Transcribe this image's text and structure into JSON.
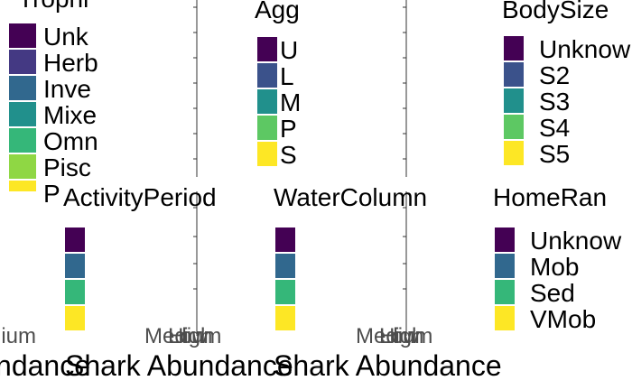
{
  "chart_data": [
    {
      "type": "bar",
      "title": "Trophi",
      "legend": [
        "Unk",
        "Herb",
        "Inve",
        "Mixe",
        "Omn",
        "Pisc",
        "P"
      ],
      "colors": [
        "#440154",
        "#443983",
        "#31688E",
        "#21908C",
        "#35B779",
        "#8FD744",
        "#FDE725"
      ],
      "legend_placement": "right"
    },
    {
      "type": "bar",
      "title": "Agg",
      "legend": [
        "U",
        "L",
        "M",
        "P",
        "S"
      ],
      "colors": [
        "#440154",
        "#3B528B",
        "#21908C",
        "#5DC863",
        "#FDE725"
      ],
      "legend_placement": "right"
    },
    {
      "type": "bar",
      "title": "BodySize",
      "legend": [
        "Unknow",
        "S2",
        "S3",
        "S4",
        "S5"
      ],
      "colors": [
        "#440154",
        "#3B528B",
        "#21908C",
        "#5DC863",
        "#FDE725"
      ],
      "legend_placement": "right"
    },
    {
      "type": "bar",
      "title": "ActivityPeriod",
      "legend": [],
      "colors": [
        "#440154",
        "#31688E",
        "#35B779",
        "#FDE725"
      ],
      "xlabel": "Shark Abundance",
      "categories": [
        "Medium",
        "High",
        "Low"
      ],
      "legend_placement": "right"
    },
    {
      "type": "bar",
      "title": "WaterColumn",
      "legend": [],
      "colors": [
        "#440154",
        "#31688E",
        "#35B779",
        "#FDE725"
      ],
      "xlabel": "Shark Abundance",
      "categories": [
        "Medium",
        "High",
        "Low"
      ],
      "legend_placement": "right"
    },
    {
      "type": "bar",
      "title": "HomeRan",
      "legend": [
        "Unknow",
        "Mob",
        "Sed",
        "VMob"
      ],
      "colors": [
        "#440154",
        "#31688E",
        "#35B779",
        "#FDE725"
      ],
      "xlabel": "Shark Abundance",
      "categories": [
        "Medium",
        "High",
        "Low"
      ],
      "legend_placement": "right"
    }
  ]
}
